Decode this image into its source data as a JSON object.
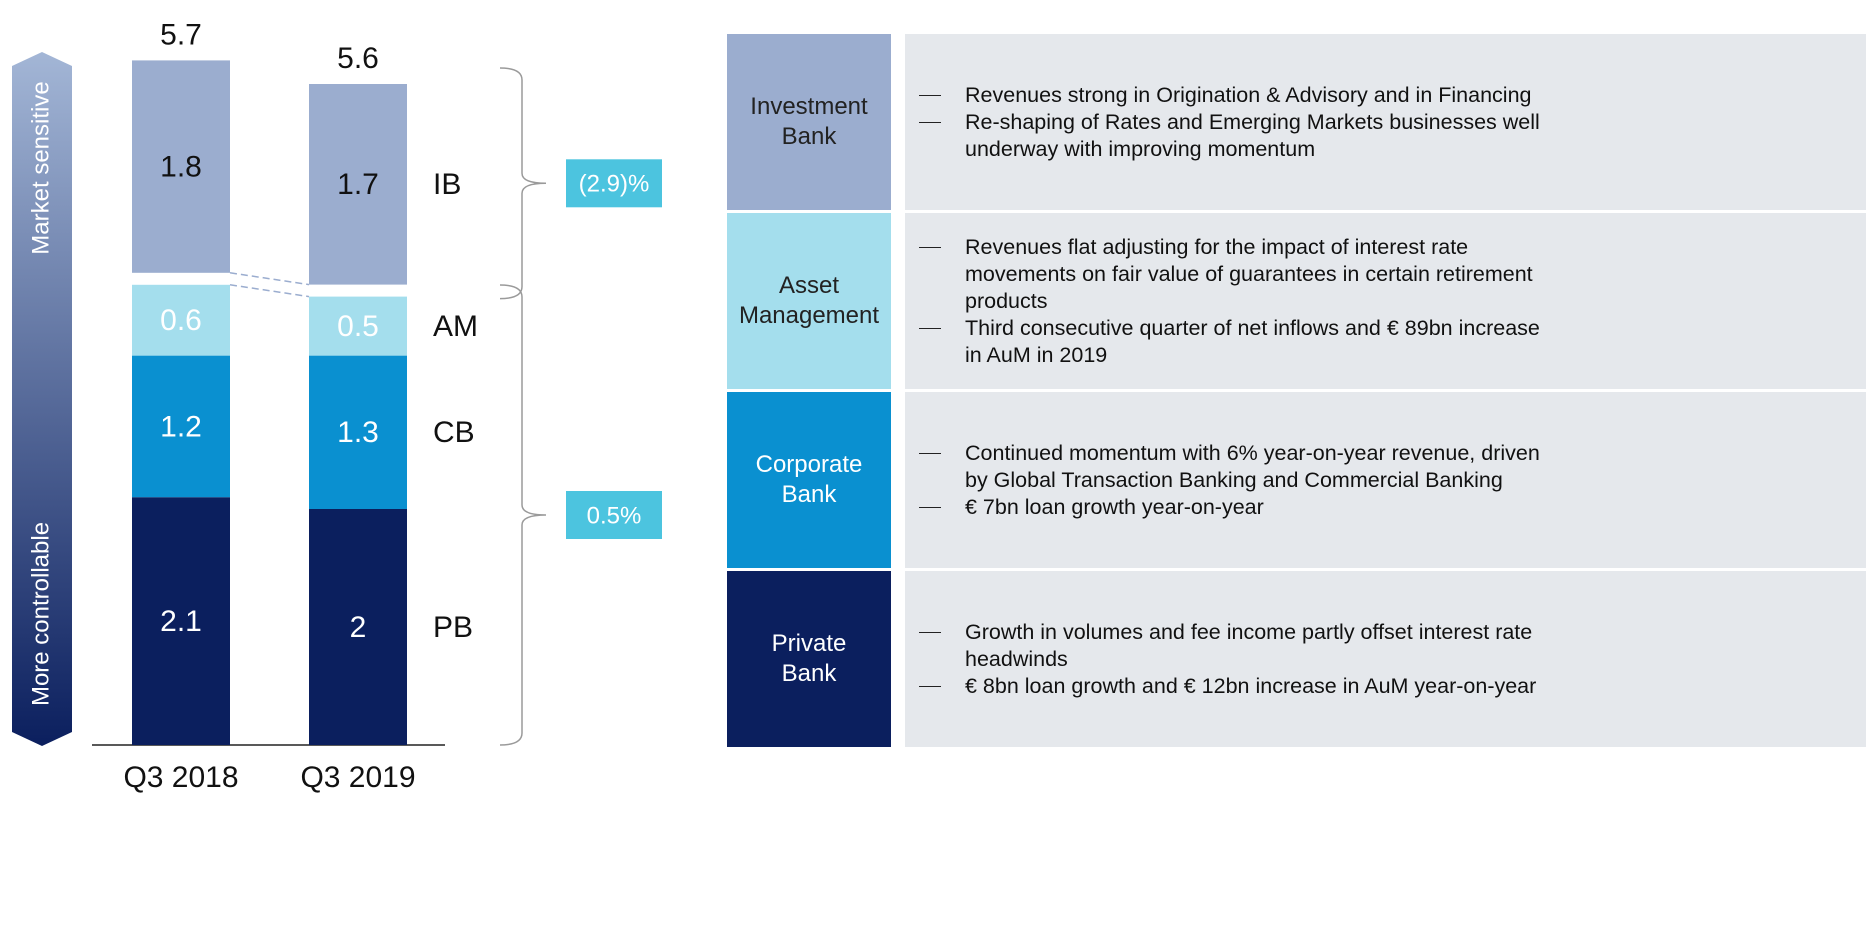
{
  "chart_data": {
    "type": "stacked_bar",
    "categories": [
      "Q3 2018",
      "Q3 2019"
    ],
    "series": [
      {
        "name": "PB",
        "color": "#0b1f5e",
        "label_color": "#ffffff",
        "values": [
          2.1,
          2.0
        ]
      },
      {
        "name": "CB",
        "color": "#0a90d0",
        "label_color": "#ffffff",
        "values": [
          1.2,
          1.3
        ]
      },
      {
        "name": "AM",
        "color": "#a4deed",
        "label_color": "#ffffff",
        "values": [
          0.6,
          0.5
        ]
      },
      {
        "name": "IB",
        "color": "#9badcf",
        "label_color": "#111111",
        "values": [
          1.8,
          1.7
        ]
      }
    ],
    "totals": [
      5.7,
      5.6
    ],
    "annotations": [
      {
        "text": "(2.9)%"
      },
      {
        "text": "0.5%"
      }
    ],
    "side_labels": [
      "Market sensitive",
      "More controllable"
    ]
  },
  "table": {
    "rows": [
      {
        "label": "Investment Bank",
        "color": "#9badcf",
        "text_color": "#222222",
        "bullets": [
          "Revenues strong in Origination & Advisory and in Financing",
          "Re-shaping of Rates and Emerging Markets businesses well underway with improving momentum"
        ]
      },
      {
        "label": "Asset Management",
        "color": "#a4deed",
        "text_color": "#222222",
        "bullets": [
          "Revenues flat adjusting for the impact of interest rate movements on fair value of guarantees in certain retirement products",
          "Third consecutive quarter of net inflows and € 89bn increase in AuM in 2019"
        ]
      },
      {
        "label": "Corporate Bank",
        "color": "#0a90d0",
        "text_color": "#ffffff",
        "bullets": [
          "Continued momentum with 6% year-on-year revenue, driven by Global Transaction Banking and Commercial Banking",
          "€ 7bn loan growth year-on-year"
        ]
      },
      {
        "label": "Private Bank",
        "color": "#0b1f5e",
        "text_color": "#ffffff",
        "bullets": [
          "Growth in volumes and fee income partly offset interest rate headwinds",
          "€ 8bn loan growth and € 12bn increase in AuM year-on-year"
        ]
      }
    ]
  }
}
